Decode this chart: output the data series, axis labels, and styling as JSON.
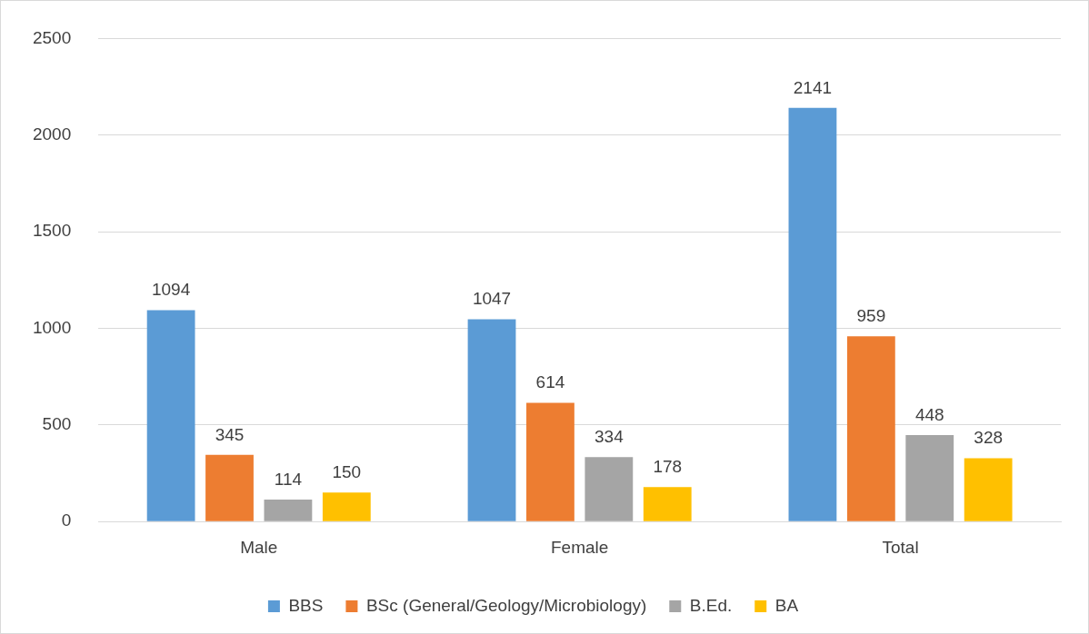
{
  "chart_data": {
    "type": "bar",
    "categories": [
      "Male",
      "Female",
      "Total"
    ],
    "series": [
      {
        "name": "BBS",
        "color": "#5b9bd5",
        "values": [
          1094,
          1047,
          2141
        ]
      },
      {
        "name": "BSc (General/Geology/Microbiology)",
        "color": "#ed7d31",
        "values": [
          345,
          614,
          959
        ]
      },
      {
        "name": "B.Ed.",
        "color": "#a5a5a5",
        "values": [
          114,
          334,
          448
        ]
      },
      {
        "name": "BA",
        "color": "#ffc000",
        "values": [
          150,
          178,
          328
        ]
      }
    ],
    "ylim": [
      0,
      2500
    ],
    "yticks": [
      0,
      500,
      1000,
      1500,
      2000,
      2500
    ],
    "grid": "y",
    "legend": "bottom",
    "data_labels": true
  }
}
